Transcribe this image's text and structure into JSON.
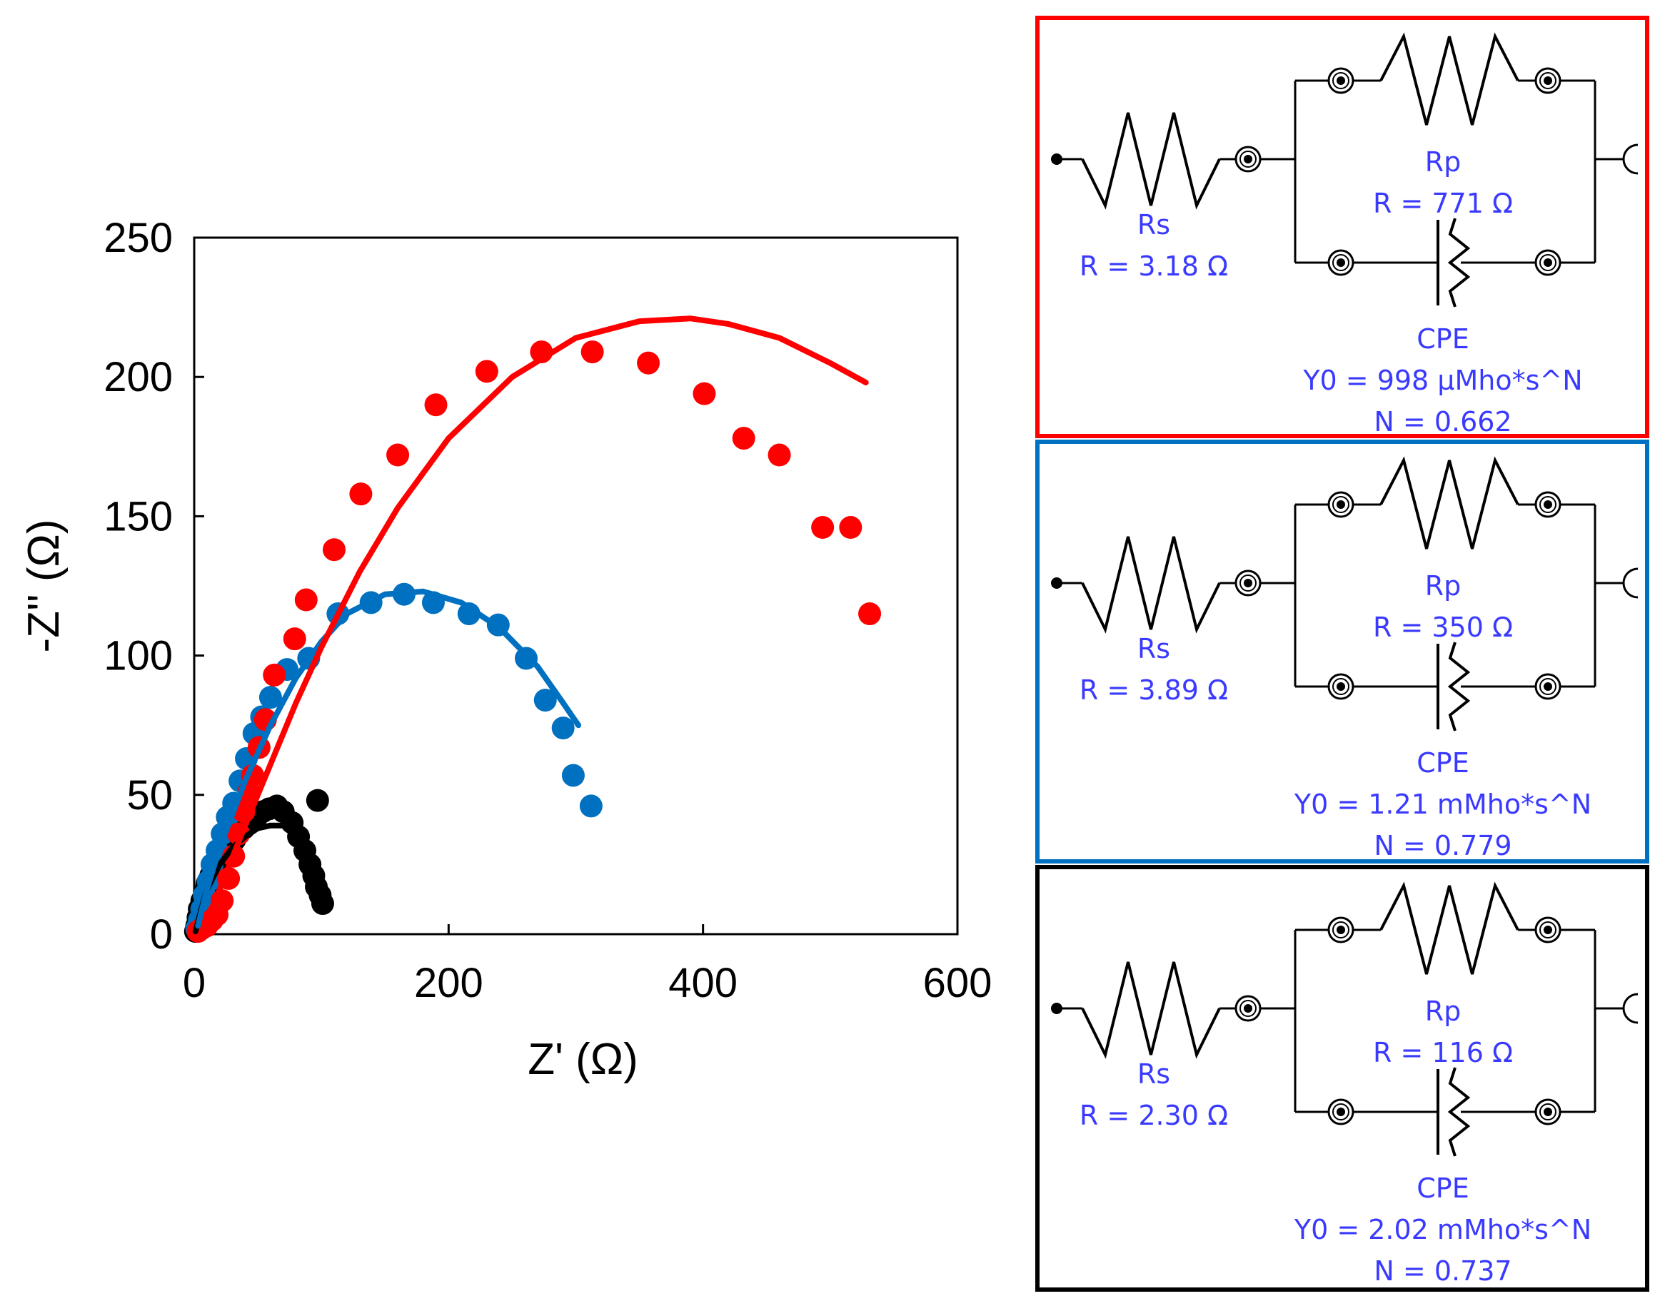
{
  "chart_data": {
    "type": "scatter",
    "xlabel": "Z' (Ω)",
    "ylabel": "-Z'' (Ω)",
    "xlim": [
      0,
      600
    ],
    "ylim": [
      0,
      250
    ],
    "xticks": [
      "0",
      "200",
      "400",
      "600"
    ],
    "yticks": [
      "0",
      "50",
      "100",
      "150",
      "200",
      "250"
    ],
    "legend": "none",
    "series": [
      {
        "name": "red",
        "color": "#ff0000",
        "points": [
          [
            3,
            1
          ],
          [
            6,
            2
          ],
          [
            10,
            3
          ],
          [
            14,
            5
          ],
          [
            18,
            7
          ],
          [
            22,
            12
          ],
          [
            27,
            20
          ],
          [
            31,
            28
          ],
          [
            35,
            36
          ],
          [
            39,
            44
          ],
          [
            43,
            51
          ],
          [
            46,
            57
          ],
          [
            51,
            67
          ],
          [
            56,
            77
          ],
          [
            63,
            93
          ],
          [
            79,
            106
          ],
          [
            88,
            120
          ],
          [
            110,
            138
          ],
          [
            131,
            158
          ],
          [
            160,
            172
          ],
          [
            190,
            190
          ],
          [
            230,
            202
          ],
          [
            273,
            209
          ],
          [
            313,
            209
          ],
          [
            357,
            205
          ],
          [
            401,
            194
          ],
          [
            432,
            178
          ],
          [
            460,
            172
          ],
          [
            494,
            146
          ],
          [
            516,
            146
          ],
          [
            531,
            115
          ]
        ],
        "fit": [
          [
            8,
            3
          ],
          [
            20,
            16
          ],
          [
            40,
            39
          ],
          [
            60,
            61
          ],
          [
            80,
            83
          ],
          [
            100,
            103
          ],
          [
            130,
            130
          ],
          [
            160,
            153
          ],
          [
            200,
            178
          ],
          [
            250,
            200
          ],
          [
            300,
            214
          ],
          [
            350,
            220
          ],
          [
            390,
            221
          ],
          [
            420,
            219
          ],
          [
            460,
            214
          ],
          [
            500,
            205
          ],
          [
            528,
            198
          ]
        ]
      },
      {
        "name": "blue",
        "color": "#0070c0",
        "points": [
          [
            2,
            2
          ],
          [
            4,
            5
          ],
          [
            6,
            9
          ],
          [
            8,
            14
          ],
          [
            11,
            19
          ],
          [
            14,
            25
          ],
          [
            18,
            30
          ],
          [
            22,
            36
          ],
          [
            26,
            42
          ],
          [
            31,
            47
          ],
          [
            36,
            55
          ],
          [
            41,
            63
          ],
          [
            47,
            72
          ],
          [
            53,
            78
          ],
          [
            60,
            85
          ],
          [
            73,
            95
          ],
          [
            90,
            99
          ],
          [
            113,
            115
          ],
          [
            139,
            119
          ],
          [
            165,
            122
          ],
          [
            188,
            119
          ],
          [
            216,
            115
          ],
          [
            239,
            111
          ],
          [
            261,
            99
          ],
          [
            276,
            84
          ],
          [
            290,
            74
          ],
          [
            298,
            57
          ],
          [
            312,
            46
          ]
        ],
        "fit": [
          [
            3,
            3
          ],
          [
            10,
            16
          ],
          [
            20,
            31
          ],
          [
            40,
            55
          ],
          [
            60,
            75
          ],
          [
            80,
            92
          ],
          [
            100,
            105
          ],
          [
            120,
            115
          ],
          [
            150,
            122
          ],
          [
            180,
            123
          ],
          [
            210,
            119
          ],
          [
            240,
            110
          ],
          [
            270,
            96
          ],
          [
            290,
            83
          ],
          [
            302,
            75
          ]
        ]
      },
      {
        "name": "black",
        "color": "#000000",
        "points": [
          [
            1,
            1
          ],
          [
            2,
            3
          ],
          [
            3,
            6
          ],
          [
            4,
            9
          ],
          [
            6,
            12
          ],
          [
            8,
            15
          ],
          [
            10,
            18
          ],
          [
            13,
            21
          ],
          [
            16,
            24
          ],
          [
            19,
            27
          ],
          [
            22,
            29
          ],
          [
            25,
            31
          ],
          [
            28,
            32
          ],
          [
            32,
            34
          ],
          [
            35,
            36
          ],
          [
            39,
            38
          ],
          [
            44,
            40
          ],
          [
            49,
            42
          ],
          [
            54,
            44
          ],
          [
            59,
            45
          ],
          [
            65,
            46
          ],
          [
            70,
            44
          ],
          [
            77,
            40
          ],
          [
            82,
            35
          ],
          [
            87,
            30
          ],
          [
            91,
            25
          ],
          [
            94,
            21
          ],
          [
            96,
            17
          ],
          [
            99,
            14
          ],
          [
            101,
            11
          ],
          [
            97,
            48
          ]
        ],
        "fit": [
          [
            1,
            1
          ],
          [
            5,
            8
          ],
          [
            10,
            16
          ],
          [
            20,
            25
          ],
          [
            30,
            31
          ],
          [
            40,
            35
          ],
          [
            50,
            38
          ],
          [
            60,
            39
          ],
          [
            70,
            39
          ],
          [
            75,
            38
          ]
        ]
      }
    ]
  },
  "circuits": [
    {
      "id": "red",
      "border_color": "#ff0000",
      "rs_name": "Rs",
      "rs_value": "R = 3.18 Ω",
      "rp_name": "Rp",
      "rp_value": "R = 771 Ω",
      "cpe_name": "CPE",
      "cpe_y0": "Y0 = 998 µMho*s^N",
      "cpe_n": "N = 0.662"
    },
    {
      "id": "blue",
      "border_color": "#0070c0",
      "rs_name": "Rs",
      "rs_value": "R = 3.89 Ω",
      "rp_name": "Rp",
      "rp_value": "R = 350 Ω",
      "cpe_name": "CPE",
      "cpe_y0": "Y0 = 1.21 mMho*s^N",
      "cpe_n": "N = 0.779"
    },
    {
      "id": "black",
      "border_color": "#000000",
      "rs_name": "Rs",
      "rs_value": "R = 2.30 Ω",
      "rp_name": "Rp",
      "rp_value": "R = 116 Ω",
      "cpe_name": "CPE",
      "cpe_y0": "Y0 = 2.02 mMho*s^N",
      "cpe_n": "N = 0.737"
    }
  ]
}
